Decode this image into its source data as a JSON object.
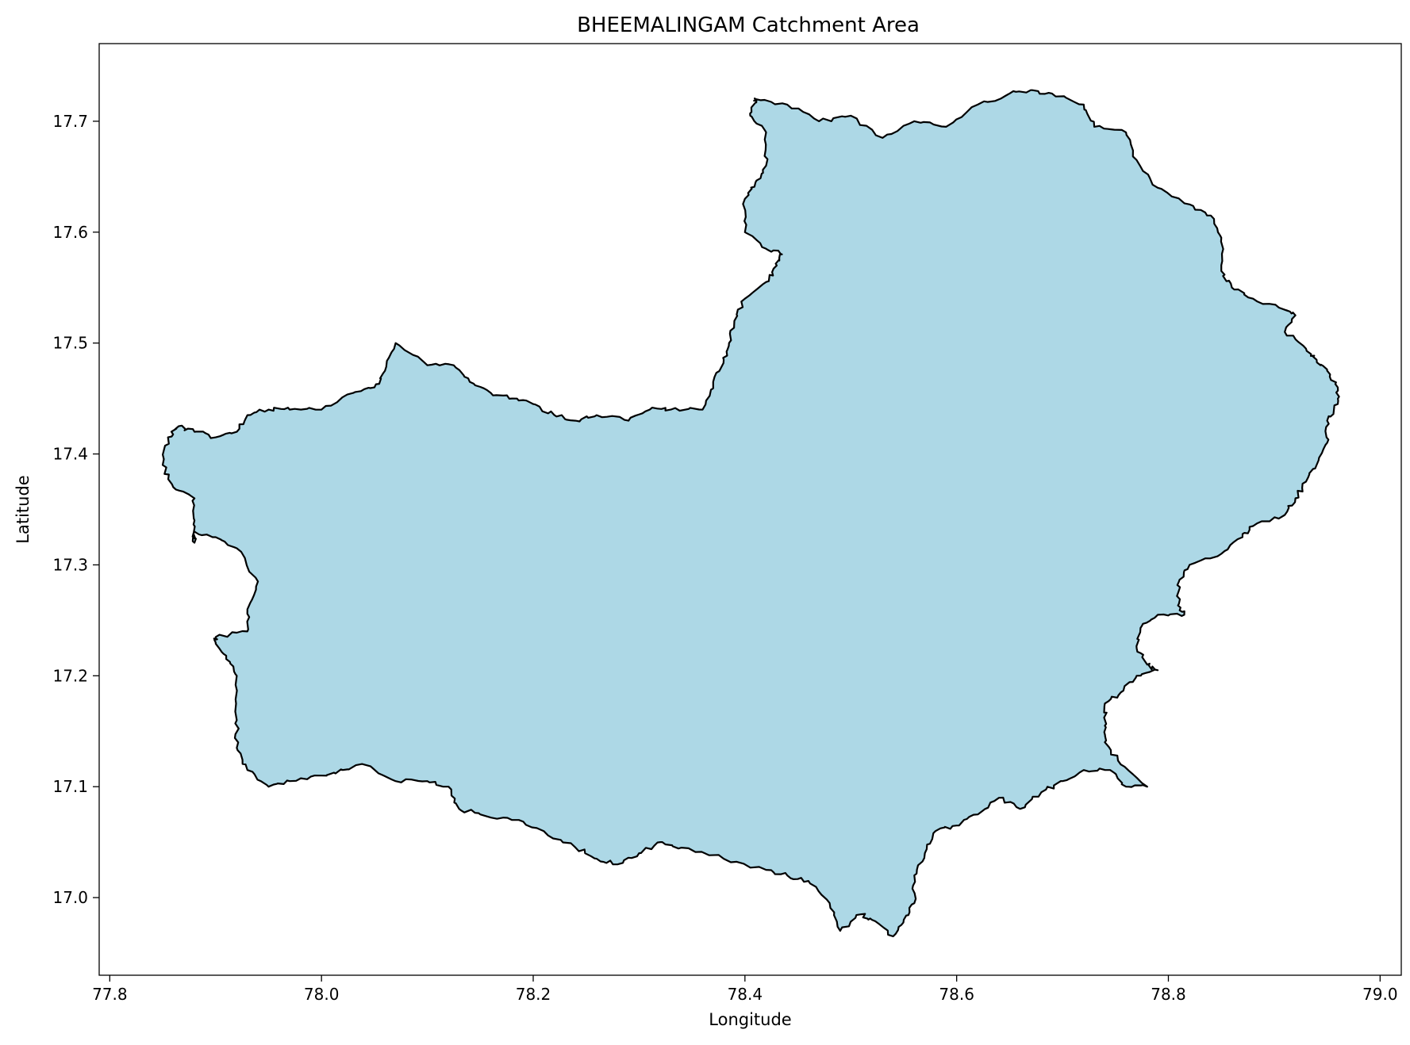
{
  "chart_data": {
    "type": "map",
    "title": "BHEEMALINGAM Catchment Area",
    "xlabel": "Longitude",
    "ylabel": "Latitude",
    "xlim": [
      77.79,
      79.02
    ],
    "ylim": [
      16.93,
      17.77
    ],
    "xticks": [
      77.8,
      78.0,
      78.2,
      78.4,
      78.6,
      78.8,
      79.0
    ],
    "xtick_labels": [
      "77.8",
      "78.0",
      "78.2",
      "78.4",
      "78.6",
      "78.8",
      "79.0"
    ],
    "yticks": [
      17.0,
      17.1,
      17.2,
      17.3,
      17.4,
      17.5,
      17.6,
      17.7
    ],
    "ytick_labels": [
      "17.0",
      "17.1",
      "17.2",
      "17.3",
      "17.4",
      "17.5",
      "17.6",
      "17.7"
    ],
    "grid": false,
    "fill_color": "#add8e6",
    "edge_color": "#000000",
    "boundary": [
      [
        78.41,
        17.72
      ],
      [
        78.44,
        17.715
      ],
      [
        78.47,
        17.7
      ],
      [
        78.5,
        17.705
      ],
      [
        78.53,
        17.685
      ],
      [
        78.56,
        17.7
      ],
      [
        78.59,
        17.695
      ],
      [
        78.62,
        17.715
      ],
      [
        78.65,
        17.725
      ],
      [
        78.67,
        17.728
      ],
      [
        78.69,
        17.725
      ],
      [
        78.72,
        17.715
      ],
      [
        78.73,
        17.695
      ],
      [
        78.76,
        17.69
      ],
      [
        78.77,
        17.665
      ],
      [
        78.79,
        17.64
      ],
      [
        78.82,
        17.625
      ],
      [
        78.84,
        17.615
      ],
      [
        78.85,
        17.595
      ],
      [
        78.85,
        17.565
      ],
      [
        78.86,
        17.55
      ],
      [
        78.88,
        17.54
      ],
      [
        78.91,
        17.53
      ],
      [
        78.92,
        17.525
      ],
      [
        78.91,
        17.51
      ],
      [
        78.93,
        17.495
      ],
      [
        78.94,
        17.485
      ],
      [
        78.95,
        17.475
      ],
      [
        78.96,
        17.46
      ],
      [
        78.96,
        17.445
      ],
      [
        78.95,
        17.43
      ],
      [
        78.95,
        17.41
      ],
      [
        78.94,
        17.39
      ],
      [
        78.93,
        17.375
      ],
      [
        78.92,
        17.36
      ],
      [
        78.91,
        17.345
      ],
      [
        78.88,
        17.335
      ],
      [
        78.87,
        17.325
      ],
      [
        78.85,
        17.31
      ],
      [
        78.82,
        17.3
      ],
      [
        78.81,
        17.285
      ],
      [
        78.81,
        17.265
      ],
      [
        78.815,
        17.255
      ],
      [
        78.79,
        17.255
      ],
      [
        78.775,
        17.245
      ],
      [
        78.77,
        17.225
      ],
      [
        78.78,
        17.21
      ],
      [
        78.79,
        17.205
      ],
      [
        78.77,
        17.2
      ],
      [
        78.755,
        17.185
      ],
      [
        78.74,
        17.175
      ],
      [
        78.74,
        17.155
      ],
      [
        78.74,
        17.14
      ],
      [
        78.755,
        17.12
      ],
      [
        78.78,
        17.1
      ],
      [
        78.76,
        17.1
      ],
      [
        78.745,
        17.115
      ],
      [
        78.72,
        17.115
      ],
      [
        78.7,
        17.105
      ],
      [
        78.68,
        17.095
      ],
      [
        78.66,
        17.08
      ],
      [
        78.64,
        17.09
      ],
      [
        78.62,
        17.075
      ],
      [
        78.6,
        17.065
      ],
      [
        78.58,
        17.06
      ],
      [
        78.57,
        17.04
      ],
      [
        78.56,
        17.02
      ],
      [
        78.56,
        16.995
      ],
      [
        78.55,
        16.98
      ],
      [
        78.54,
        16.965
      ],
      [
        78.52,
        16.98
      ],
      [
        78.51,
        16.985
      ],
      [
        78.49,
        16.97
      ],
      [
        78.48,
        16.995
      ],
      [
        78.46,
        17.015
      ],
      [
        78.44,
        17.02
      ],
      [
        78.42,
        17.025
      ],
      [
        78.38,
        17.035
      ],
      [
        78.34,
        17.045
      ],
      [
        78.32,
        17.05
      ],
      [
        78.3,
        17.04
      ],
      [
        78.28,
        17.03
      ],
      [
        78.26,
        17.035
      ],
      [
        78.24,
        17.045
      ],
      [
        78.21,
        17.06
      ],
      [
        78.18,
        17.07
      ],
      [
        78.15,
        17.075
      ],
      [
        78.13,
        17.08
      ],
      [
        78.12,
        17.1
      ],
      [
        78.1,
        17.105
      ],
      [
        78.07,
        17.105
      ],
      [
        78.04,
        17.12
      ],
      [
        78.02,
        17.115
      ],
      [
        78.0,
        17.11
      ],
      [
        77.97,
        17.105
      ],
      [
        77.95,
        17.1
      ],
      [
        77.93,
        17.115
      ],
      [
        77.92,
        17.135
      ],
      [
        77.92,
        17.16
      ],
      [
        77.92,
        17.2
      ],
      [
        77.91,
        17.215
      ],
      [
        77.9,
        17.23
      ],
      [
        77.9,
        17.235
      ],
      [
        77.93,
        17.24
      ],
      [
        77.93,
        17.26
      ],
      [
        77.94,
        17.285
      ],
      [
        77.92,
        17.315
      ],
      [
        77.9,
        17.325
      ],
      [
        77.88,
        17.33
      ],
      [
        77.88,
        17.32
      ],
      [
        77.88,
        17.34
      ],
      [
        77.88,
        17.36
      ],
      [
        77.86,
        17.37
      ],
      [
        77.85,
        17.39
      ],
      [
        77.855,
        17.415
      ],
      [
        77.865,
        17.425
      ],
      [
        77.88,
        17.42
      ],
      [
        77.9,
        17.415
      ],
      [
        77.92,
        17.42
      ],
      [
        77.93,
        17.435
      ],
      [
        77.95,
        17.44
      ],
      [
        77.97,
        17.44
      ],
      [
        78.0,
        17.44
      ],
      [
        78.03,
        17.455
      ],
      [
        78.05,
        17.46
      ],
      [
        78.06,
        17.475
      ],
      [
        78.07,
        17.5
      ],
      [
        78.1,
        17.48
      ],
      [
        78.125,
        17.48
      ],
      [
        78.14,
        17.465
      ],
      [
        78.16,
        17.455
      ],
      [
        78.18,
        17.45
      ],
      [
        78.2,
        17.445
      ],
      [
        78.22,
        17.435
      ],
      [
        78.24,
        17.43
      ],
      [
        78.26,
        17.435
      ],
      [
        78.29,
        17.43
      ],
      [
        78.31,
        17.44
      ],
      [
        78.33,
        17.44
      ],
      [
        78.36,
        17.44
      ],
      [
        78.37,
        17.465
      ],
      [
        78.38,
        17.485
      ],
      [
        78.385,
        17.5
      ],
      [
        78.39,
        17.52
      ],
      [
        78.4,
        17.54
      ],
      [
        78.42,
        17.555
      ],
      [
        78.43,
        17.57
      ],
      [
        78.435,
        17.58
      ],
      [
        78.42,
        17.585
      ],
      [
        78.4,
        17.6
      ],
      [
        78.4,
        17.63
      ],
      [
        78.41,
        17.645
      ],
      [
        78.42,
        17.66
      ],
      [
        78.42,
        17.69
      ],
      [
        78.405,
        17.705
      ],
      [
        78.41,
        17.72
      ]
    ]
  }
}
